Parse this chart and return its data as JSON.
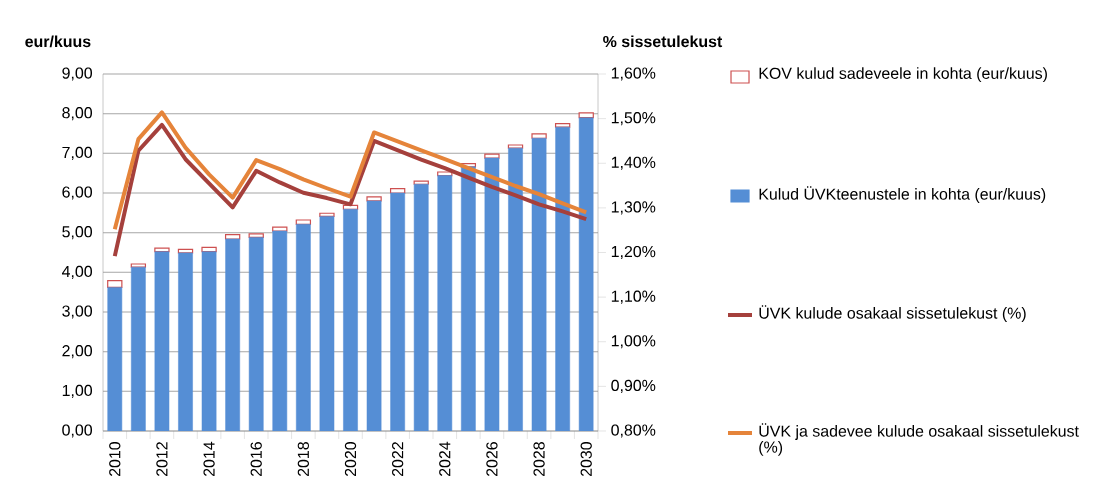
{
  "chart_data": {
    "type": "bar",
    "stacked": true,
    "ylabel": "eur/kuus",
    "y2label": "% sissetulekust",
    "categories": [
      "2010",
      null,
      "2012",
      null,
      "2014",
      null,
      "2016",
      null,
      "2018",
      null,
      "2020",
      null,
      "2022",
      null,
      "2024",
      null,
      "2026",
      null,
      "2028",
      null,
      "2030"
    ],
    "series": [
      {
        "name": "Kulud ÜVKteenustele in kohta (eur/kuus)",
        "color": "#558ed5",
        "values": [
          3.62,
          4.13,
          4.52,
          4.49,
          4.52,
          4.84,
          4.88,
          5.04,
          5.21,
          5.41,
          5.59,
          5.8,
          6.0,
          6.22,
          6.44,
          6.66,
          6.88,
          7.13,
          7.38,
          7.66,
          7.9
        ]
      },
      {
        "name": "KOV kulud sadeveele in kohta (eur/kuus)",
        "color": "#ffffff",
        "values": [
          0.17,
          0.08,
          0.09,
          0.09,
          0.11,
          0.11,
          0.09,
          0.1,
          0.11,
          0.08,
          0.1,
          0.1,
          0.11,
          0.08,
          0.09,
          0.08,
          0.1,
          0.08,
          0.11,
          0.09,
          0.12
        ]
      },
      {
        "name": "ÜVK kulude osakaal sissetulekust (%)",
        "type": "line",
        "axis": "y2",
        "color": "#a5403c",
        "values": [
          1.192,
          1.428,
          1.486,
          1.409,
          1.355,
          1.301,
          1.383,
          1.357,
          1.334,
          1.322,
          1.308,
          1.45,
          1.429,
          1.408,
          1.389,
          1.368,
          1.347,
          1.328,
          1.308,
          1.292,
          1.275
        ]
      },
      {
        "name": "ÜVK ja sadevee kulude osakaal sissetulekust (%)",
        "type": "line",
        "axis": "y2",
        "color": "#e5843a",
        "values": [
          1.252,
          1.454,
          1.514,
          1.435,
          1.375,
          1.323,
          1.407,
          1.387,
          1.364,
          1.344,
          1.325,
          1.469,
          1.449,
          1.429,
          1.409,
          1.389,
          1.369,
          1.349,
          1.331,
          1.31,
          1.29
        ]
      }
    ],
    "ylim": [
      0,
      9
    ],
    "yticks": [
      {
        "value": 0,
        "label": "0,00"
      },
      {
        "value": 1,
        "label": "1,00"
      },
      {
        "value": 2,
        "label": "2,00"
      },
      {
        "value": 3,
        "label": "3,00"
      },
      {
        "value": 4,
        "label": "4,00"
      },
      {
        "value": 5,
        "label": "5,00"
      },
      {
        "value": 6,
        "label": "6,00"
      },
      {
        "value": 7,
        "label": "7,00"
      },
      {
        "value": 8,
        "label": "8,00"
      },
      {
        "value": 9,
        "label": "9,00"
      }
    ],
    "y2lim": [
      0.8,
      1.6
    ],
    "y2ticks": [
      {
        "value": 0.8,
        "label": "0,80%"
      },
      {
        "value": 0.9,
        "label": "0,90%"
      },
      {
        "value": 1.0,
        "label": "1,00%"
      },
      {
        "value": 1.1,
        "label": "1,10%"
      },
      {
        "value": 1.2,
        "label": "1,20%"
      },
      {
        "value": 1.3,
        "label": "1,30%"
      },
      {
        "value": 1.4,
        "label": "1,40%"
      },
      {
        "value": 1.5,
        "label": "1,50%"
      },
      {
        "value": 1.6,
        "label": "1,60%"
      }
    ],
    "grid": "y",
    "legend": "right",
    "marker": "none",
    "line_style": "solid"
  }
}
